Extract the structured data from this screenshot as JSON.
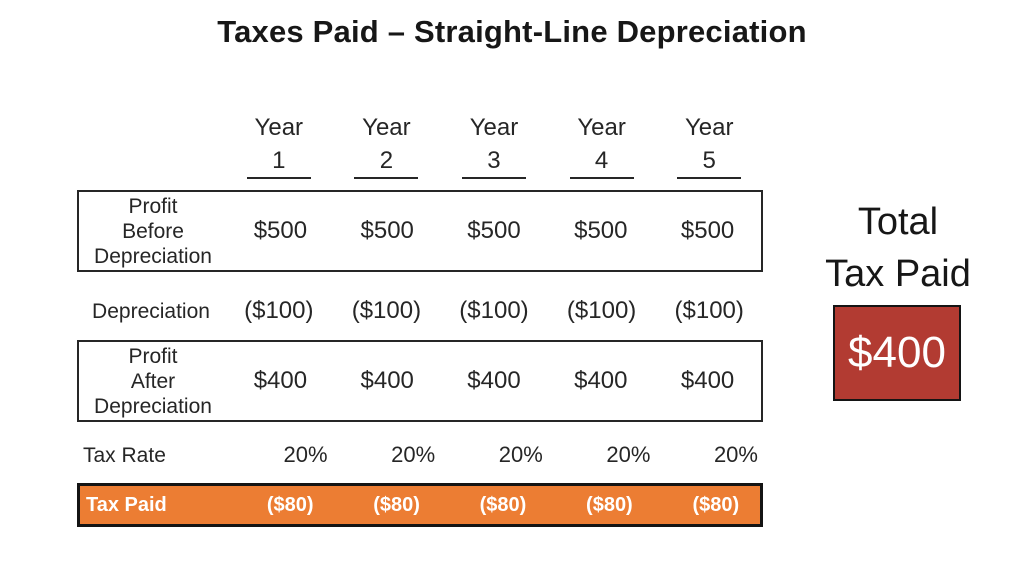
{
  "title": "Taxes Paid – Straight-Line Depreciation",
  "table": {
    "year_label": "Year",
    "columns": [
      "1",
      "2",
      "3",
      "4",
      "5"
    ],
    "rows": [
      {
        "label_lines": [
          "Profit",
          "Before",
          "Depreciation"
        ],
        "values": [
          "$500",
          "$500",
          "$500",
          "$500",
          "$500"
        ]
      },
      {
        "label_lines": [
          "Depreciation"
        ],
        "values": [
          "($100)",
          "($100)",
          "($100)",
          "($100)",
          "($100)"
        ]
      },
      {
        "label_lines": [
          "Profit",
          "After",
          "Depreciation"
        ],
        "values": [
          "$400",
          "$400",
          "$400",
          "$400",
          "$400"
        ]
      },
      {
        "label_lines": [
          "Tax Rate"
        ],
        "values": [
          "20%",
          "20%",
          "20%",
          "20%",
          "20%"
        ]
      },
      {
        "label_lines": [
          "Tax Paid"
        ],
        "values": [
          "($80)",
          "($80)",
          "($80)",
          "($80)",
          "($80)"
        ]
      }
    ]
  },
  "summary": {
    "title_line1": "Total",
    "title_line2": "Tax Paid",
    "value": "$400"
  },
  "colors": {
    "accent_orange": "#EC7D33",
    "accent_red": "#B23B32",
    "border_dark": "#141414",
    "text": "#262626"
  },
  "chart_data": {
    "type": "table",
    "title": "Taxes Paid – Straight-Line Depreciation",
    "columns": [
      "Year 1",
      "Year 2",
      "Year 3",
      "Year 4",
      "Year 5"
    ],
    "rows": [
      {
        "label": "Profit Before Depreciation",
        "values": [
          500,
          500,
          500,
          500,
          500
        ]
      },
      {
        "label": "Depreciation",
        "values": [
          -100,
          -100,
          -100,
          -100,
          -100
        ]
      },
      {
        "label": "Profit After Depreciation",
        "values": [
          400,
          400,
          400,
          400,
          400
        ]
      },
      {
        "label": "Tax Rate",
        "values": [
          "20%",
          "20%",
          "20%",
          "20%",
          "20%"
        ]
      },
      {
        "label": "Tax Paid",
        "values": [
          -80,
          -80,
          -80,
          -80,
          -80
        ]
      }
    ],
    "total_tax_paid": 400
  }
}
